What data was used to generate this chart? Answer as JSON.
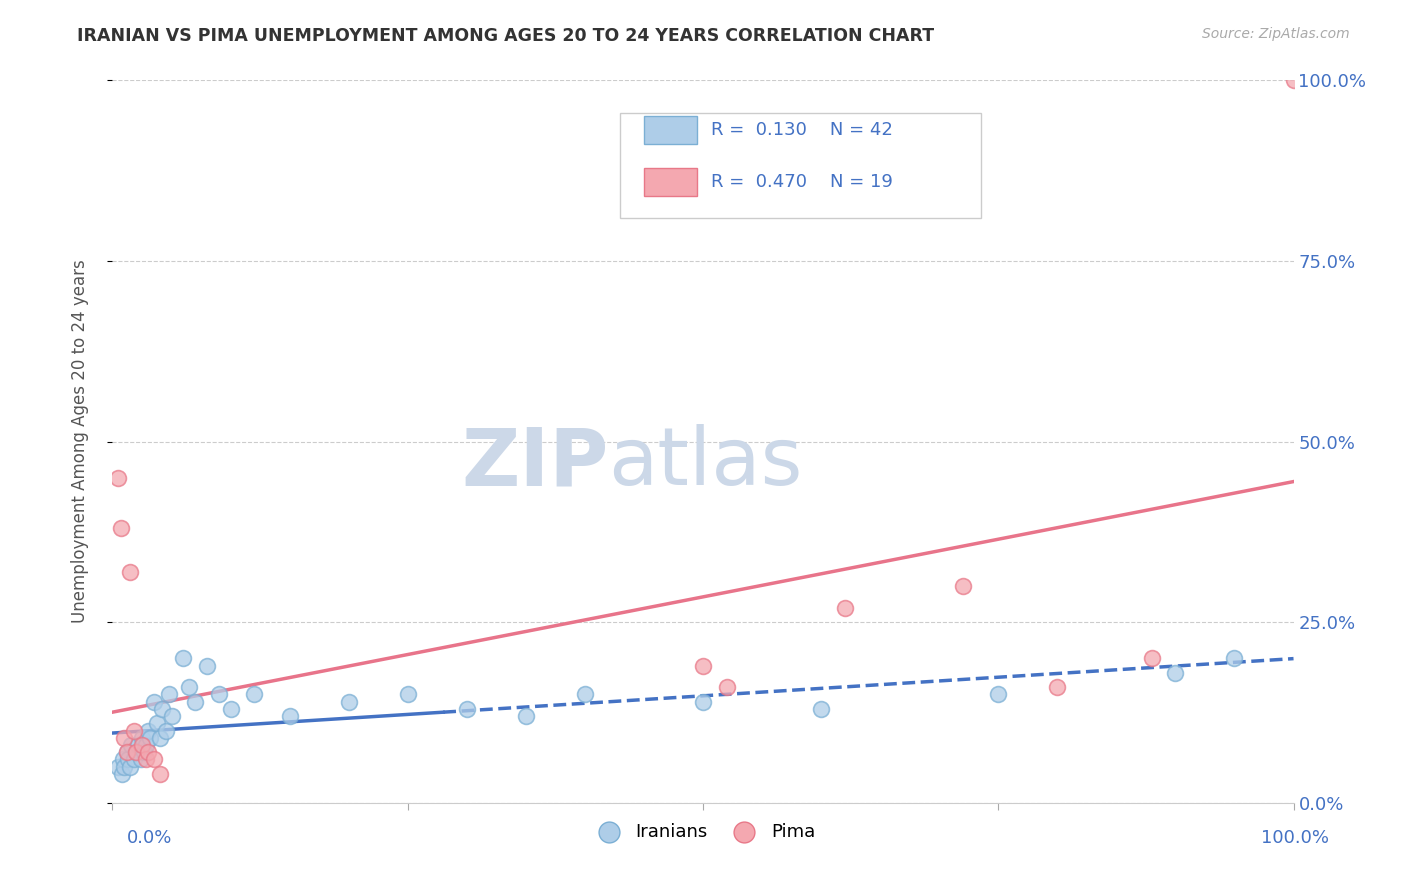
{
  "title": "IRANIAN VS PIMA UNEMPLOYMENT AMONG AGES 20 TO 24 YEARS CORRELATION CHART",
  "source": "Source: ZipAtlas.com",
  "ylabel": "Unemployment Among Ages 20 to 24 years",
  "xlim": [
    0.0,
    1.0
  ],
  "ylim": [
    0.0,
    1.0
  ],
  "grid_color": "#cccccc",
  "background_color": "#ffffff",
  "iranians_scatter_face": "#aecde8",
  "iranians_scatter_edge": "#7bafd4",
  "pima_scatter_face": "#f4a8b0",
  "pima_scatter_edge": "#e87888",
  "iranians_line_color": "#4472c4",
  "pima_line_color": "#e8748a",
  "iranians_R": 0.13,
  "iranians_N": 42,
  "pima_R": 0.47,
  "pima_N": 19,
  "axis_label_color": "#4472c4",
  "title_color": "#333333",
  "source_color": "#aaaaaa",
  "watermark_color": "#ccd8e8",
  "legend_box_color": "#dddddd",
  "iranians_x": [
    0.005,
    0.008,
    0.009,
    0.01,
    0.012,
    0.013,
    0.015,
    0.016,
    0.018,
    0.02,
    0.022,
    0.024,
    0.025,
    0.027,
    0.028,
    0.03,
    0.032,
    0.035,
    0.038,
    0.04,
    0.042,
    0.045,
    0.048,
    0.05,
    0.06,
    0.065,
    0.07,
    0.08,
    0.09,
    0.1,
    0.12,
    0.15,
    0.2,
    0.25,
    0.3,
    0.35,
    0.4,
    0.5,
    0.6,
    0.75,
    0.9,
    0.95
  ],
  "iranians_y": [
    0.05,
    0.04,
    0.06,
    0.05,
    0.07,
    0.06,
    0.05,
    0.08,
    0.06,
    0.07,
    0.08,
    0.06,
    0.09,
    0.07,
    0.08,
    0.1,
    0.09,
    0.14,
    0.11,
    0.09,
    0.13,
    0.1,
    0.15,
    0.12,
    0.2,
    0.16,
    0.14,
    0.19,
    0.15,
    0.13,
    0.15,
    0.12,
    0.14,
    0.15,
    0.13,
    0.12,
    0.15,
    0.14,
    0.13,
    0.15,
    0.18,
    0.2
  ],
  "pima_x": [
    0.005,
    0.007,
    0.01,
    0.012,
    0.015,
    0.018,
    0.02,
    0.025,
    0.028,
    0.03,
    0.035,
    0.04,
    0.5,
    0.52,
    0.62,
    0.72,
    0.8,
    0.88,
    1.0
  ],
  "pima_y": [
    0.45,
    0.38,
    0.09,
    0.07,
    0.32,
    0.1,
    0.07,
    0.08,
    0.06,
    0.07,
    0.06,
    0.04,
    0.19,
    0.16,
    0.27,
    0.3,
    0.16,
    0.2,
    1.0
  ]
}
